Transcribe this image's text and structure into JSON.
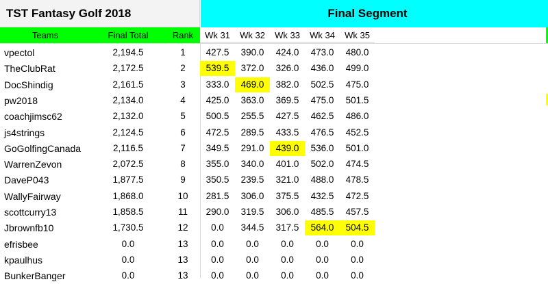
{
  "title": "TST Fantasy Golf 2018",
  "segment_title": "Final Segment",
  "colors": {
    "segment_bg": "#00ffff",
    "header_bg": "#00ff00",
    "highlight": "#ffff00"
  },
  "headers": {
    "teams": "Teams",
    "final_total": "Final Total",
    "rank": "Rank",
    "weeks": [
      "Wk 31",
      "Wk 32",
      "Wk 33",
      "Wk 34",
      "Wk 35"
    ]
  },
  "rows": [
    {
      "team": "vpectol",
      "total": "2,194.5",
      "rank": "1",
      "weeks": [
        "427.5",
        "390.0",
        "424.0",
        "473.0",
        "480.0"
      ],
      "highlight": []
    },
    {
      "team": "TheClubRat",
      "total": "2,172.5",
      "rank": "2",
      "weeks": [
        "539.5",
        "372.0",
        "326.0",
        "436.0",
        "499.0"
      ],
      "highlight": [
        0
      ]
    },
    {
      "team": "DocShindig",
      "total": "2,161.5",
      "rank": "3",
      "weeks": [
        "333.0",
        "469.0",
        "382.0",
        "502.5",
        "475.0"
      ],
      "highlight": [
        1
      ]
    },
    {
      "team": "pw2018",
      "total": "2,134.0",
      "rank": "4",
      "weeks": [
        "425.0",
        "363.0",
        "369.5",
        "475.0",
        "501.5"
      ],
      "highlight": []
    },
    {
      "team": "coachjimsc62",
      "total": "2,132.0",
      "rank": "5",
      "weeks": [
        "500.5",
        "255.5",
        "427.5",
        "462.5",
        "486.0"
      ],
      "highlight": []
    },
    {
      "team": "js4strings",
      "total": "2,124.5",
      "rank": "6",
      "weeks": [
        "472.5",
        "289.5",
        "433.5",
        "476.5",
        "452.5"
      ],
      "highlight": []
    },
    {
      "team": "GoGolfingCanada",
      "total": "2,116.5",
      "rank": "7",
      "weeks": [
        "349.5",
        "291.0",
        "439.0",
        "536.0",
        "501.0"
      ],
      "highlight": [
        2
      ]
    },
    {
      "team": "WarrenZevon",
      "total": "2,072.5",
      "rank": "8",
      "weeks": [
        "355.0",
        "340.0",
        "401.0",
        "502.0",
        "474.5"
      ],
      "highlight": []
    },
    {
      "team": "DaveP043",
      "total": "1,877.5",
      "rank": "9",
      "weeks": [
        "350.5",
        "239.5",
        "321.0",
        "488.0",
        "478.5"
      ],
      "highlight": []
    },
    {
      "team": "WallyFairway",
      "total": "1,868.0",
      "rank": "10",
      "weeks": [
        "281.5",
        "306.0",
        "375.5",
        "432.5",
        "472.5"
      ],
      "highlight": []
    },
    {
      "team": "scottcurry13",
      "total": "1,858.5",
      "rank": "11",
      "weeks": [
        "290.0",
        "319.5",
        "306.0",
        "485.5",
        "457.5"
      ],
      "highlight": []
    },
    {
      "team": "Jbrownfb10",
      "total": "1,730.5",
      "rank": "12",
      "weeks": [
        "0.0",
        "344.5",
        "317.5",
        "564.0",
        "504.5"
      ],
      "highlight": [
        3,
        4
      ]
    },
    {
      "team": "efrisbee",
      "total": "0.0",
      "rank": "13",
      "weeks": [
        "0.0",
        "0.0",
        "0.0",
        "0.0",
        "0.0"
      ],
      "highlight": []
    },
    {
      "team": "kpaulhus",
      "total": "0.0",
      "rank": "13",
      "weeks": [
        "0.0",
        "0.0",
        "0.0",
        "0.0",
        "0.0"
      ],
      "highlight": []
    },
    {
      "team": "BunkerBanger",
      "total": "0.0",
      "rank": "13",
      "weeks": [
        "0.0",
        "0.0",
        "0.0",
        "0.0",
        "0.0"
      ],
      "highlight": []
    }
  ]
}
